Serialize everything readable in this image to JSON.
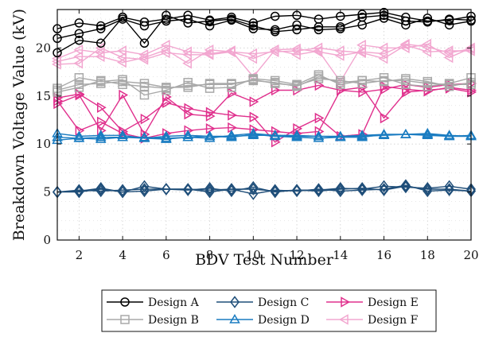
{
  "chart_data": {
    "type": "line",
    "xlabel": "BDV Test Number",
    "ylabel": "Breakdown Voltage Value (kV)",
    "xlim": [
      1,
      20
    ],
    "ylim": [
      0,
      24
    ],
    "xticks": [
      2,
      4,
      6,
      8,
      10,
      12,
      14,
      16,
      18,
      20
    ],
    "yticks": [
      0,
      5,
      10,
      15,
      20
    ],
    "grid": true,
    "legend_position": "bottom",
    "x": [
      1,
      2,
      3,
      4,
      5,
      6,
      7,
      8,
      9,
      10,
      11,
      12,
      13,
      14,
      15,
      16,
      17,
      18,
      19,
      20
    ],
    "series": [
      {
        "name": "Design A",
        "color": "#000000",
        "marker": "circle",
        "runs": [
          [
            22.0,
            22.6,
            22.3,
            23.2,
            22.7,
            23.0,
            23.4,
            22.9,
            23.2,
            22.6,
            23.3,
            23.4,
            23.0,
            23.3,
            23.5,
            23.7,
            23.2,
            22.8,
            22.9,
            23.3
          ],
          [
            21.0,
            21.5,
            22.0,
            23.0,
            22.3,
            22.8,
            23.0,
            22.3,
            22.9,
            22.0,
            21.9,
            22.4,
            21.9,
            22.0,
            22.4,
            23.1,
            22.4,
            23.1,
            22.4,
            22.8
          ],
          [
            19.5,
            20.8,
            20.5,
            23.2,
            20.5,
            23.4,
            22.6,
            22.8,
            23.0,
            22.3,
            21.7,
            21.9,
            22.2,
            22.2,
            23.2,
            23.4,
            22.8,
            22.7,
            23.0,
            22.9
          ]
        ]
      },
      {
        "name": "Design B",
        "color": "#a8a8a8",
        "marker": "square",
        "runs": [
          [
            15.8,
            16.9,
            16.5,
            16.7,
            15.1,
            15.6,
            16.4,
            15.8,
            15.9,
            16.8,
            16.6,
            16.2,
            17.2,
            16.2,
            16.6,
            16.9,
            16.2,
            16.0,
            16.3,
            16.9
          ],
          [
            15.6,
            16.2,
            16.3,
            16.5,
            16.3,
            15.9,
            15.9,
            16.3,
            16.3,
            16.6,
            16.4,
            16.0,
            17.0,
            16.4,
            16.6,
            16.5,
            16.8,
            16.5,
            16.0,
            16.4
          ],
          [
            15.4,
            15.9,
            16.6,
            16.2,
            16.0,
            15.8,
            16.1,
            16.2,
            16.2,
            16.7,
            16.3,
            16.1,
            16.8,
            16.6,
            16.3,
            16.6,
            16.6,
            16.3,
            16.2,
            16.2
          ]
        ]
      },
      {
        "name": "Design C",
        "color": "#1f4e79",
        "marker": "diamond",
        "runs": [
          [
            5.0,
            5.2,
            5.1,
            5.2,
            5.3,
            5.3,
            5.2,
            5.4,
            5.1,
            5.5,
            5.0,
            5.2,
            5.2,
            5.4,
            5.3,
            5.6,
            5.5,
            5.4,
            5.6,
            5.3
          ],
          [
            5.0,
            5.1,
            5.4,
            5.0,
            5.6,
            5.3,
            5.3,
            5.0,
            5.3,
            4.8,
            5.2,
            5.1,
            5.3,
            5.1,
            5.2,
            5.3,
            5.7,
            5.1,
            5.2,
            5.1
          ],
          [
            5.0,
            5.0,
            5.3,
            5.0,
            5.1,
            5.3,
            5.3,
            5.2,
            5.3,
            5.3,
            5.1,
            5.2,
            5.1,
            5.3,
            5.4,
            5.2,
            5.6,
            5.3,
            5.3,
            5.1
          ]
        ]
      },
      {
        "name": "Design D",
        "color": "#1a7cc1",
        "marker": "triangle-up",
        "runs": [
          [
            11.1,
            10.8,
            10.9,
            10.9,
            10.6,
            10.8,
            10.9,
            10.8,
            10.8,
            10.9,
            10.9,
            10.8,
            10.8,
            10.8,
            10.9,
            11.0,
            11.0,
            11.0,
            10.8,
            10.8
          ],
          [
            10.4,
            10.6,
            10.5,
            10.7,
            10.7,
            10.6,
            10.7,
            10.6,
            10.9,
            11.1,
            10.9,
            10.9,
            10.8,
            10.7,
            10.8,
            10.9,
            11.0,
            11.1,
            10.9,
            10.8
          ],
          [
            10.7,
            10.6,
            10.7,
            10.7,
            10.6,
            10.5,
            10.7,
            10.8,
            10.7,
            11.0,
            10.8,
            10.7,
            10.6,
            10.7,
            10.7,
            11.0,
            11.0,
            10.9,
            10.8,
            10.9
          ]
        ]
      },
      {
        "name": "Design E",
        "color": "#e0308d",
        "marker": "triangle-right",
        "runs": [
          [
            14.2,
            15.1,
            11.4,
            15.1,
            11.0,
            14.9,
            13.1,
            12.9,
            15.3,
            14.4,
            15.6,
            15.6,
            16.1,
            15.6,
            15.9,
            12.7,
            15.4,
            15.6,
            15.8,
            15.4
          ],
          [
            14.8,
            15.2,
            13.8,
            11.3,
            12.6,
            14.3,
            13.7,
            13.3,
            13.0,
            12.8,
            10.2,
            11.6,
            12.7,
            10.8,
            11.0,
            16.0,
            15.7,
            15.5,
            15.9,
            15.6
          ],
          [
            14.5,
            11.4,
            12.3,
            11.1,
            10.6,
            11.1,
            11.4,
            11.6,
            11.7,
            11.5,
            11.3,
            11.1,
            11.3,
            15.6,
            15.4,
            15.7,
            16.2,
            15.9,
            16.2,
            16.3
          ]
        ]
      },
      {
        "name": "Design F",
        "color": "#f2a7d0",
        "marker": "triangle-left",
        "runs": [
          [
            18.9,
            19.8,
            19.5,
            19.7,
            19.3,
            20.3,
            19.6,
            19.4,
            19.7,
            17.0,
            19.8,
            19.9,
            19.6,
            19.2,
            19.6,
            19.4,
            20.4,
            20.1,
            19.5,
            19.9
          ],
          [
            18.3,
            18.4,
            20.0,
            19.0,
            18.8,
            19.5,
            19.3,
            19.3,
            19.6,
            19.4,
            19.6,
            19.7,
            20.0,
            19.7,
            19.5,
            18.9,
            20.3,
            19.6,
            19.7,
            19.7
          ],
          [
            18.6,
            19.1,
            19.1,
            18.5,
            19.0,
            19.8,
            18.4,
            19.8,
            19.6,
            18.9,
            19.8,
            19.3,
            19.7,
            16.5,
            20.3,
            20.0,
            20.0,
            20.4,
            19.0,
            20.0
          ]
        ]
      }
    ]
  }
}
